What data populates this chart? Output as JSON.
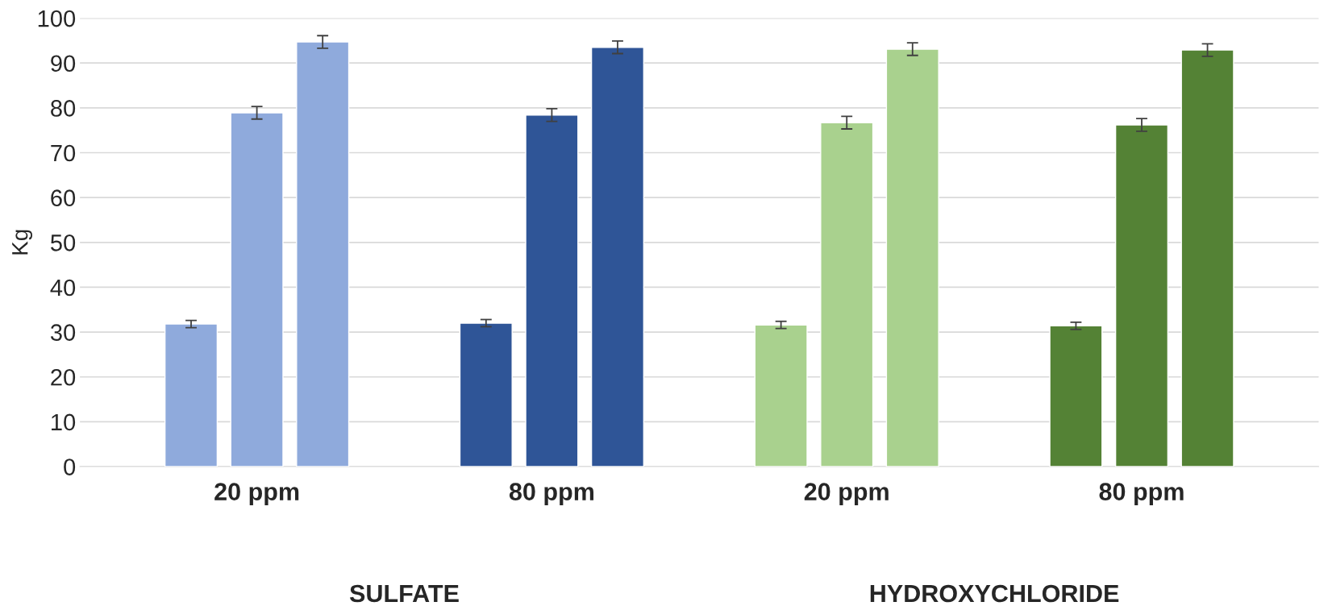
{
  "chart_data": {
    "type": "bar",
    "ylabel": "Kg",
    "categories": [
      "20 ppm",
      "80 ppm",
      "20 ppm",
      "80 ppm"
    ],
    "series": [
      {
        "colors": [
          "#8faadc",
          "#2f5597",
          "#a9d18e",
          "#548235"
        ],
        "values": [
          31.8,
          32.0,
          31.6,
          31.4
        ],
        "errors": [
          0.8,
          0.8,
          0.8,
          0.8
        ]
      },
      {
        "colors": [
          "#8faadc",
          "#2f5597",
          "#a9d18e",
          "#548235"
        ],
        "values": [
          78.9,
          78.4,
          76.7,
          76.2
        ],
        "errors": [
          1.4,
          1.4,
          1.4,
          1.4
        ]
      },
      {
        "colors": [
          "#8faadc",
          "#2f5597",
          "#a9d18e",
          "#548235"
        ],
        "values": [
          94.7,
          93.5,
          93.1,
          92.9
        ],
        "errors": [
          1.4,
          1.4,
          1.4,
          1.4
        ]
      }
    ],
    "annotations": [
      "SULFATE",
      "HYDROXYCHLORIDE"
    ],
    "ylim": [
      0,
      100
    ],
    "yticks": [
      0,
      10,
      20,
      30,
      40,
      50,
      60,
      70,
      80,
      90,
      100
    ],
    "grid": "y",
    "legend": false
  }
}
